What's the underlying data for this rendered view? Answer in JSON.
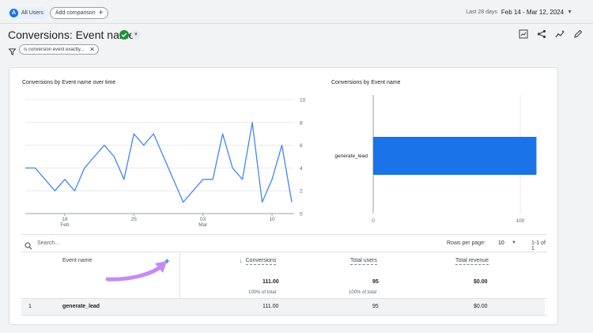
{
  "header": {
    "segment_avatar": "A",
    "segment_label": "All Users",
    "add_comparison": "Add comparison",
    "date_label": "Last 28 days",
    "date_range": "Feb 14 - Mar 12, 2024"
  },
  "report": {
    "title": "Conversions: Event name",
    "filter_text": "is conversion event exactly..."
  },
  "icons": [
    "segment-avatar-icon",
    "plus-icon",
    "check-circle-icon",
    "chevron-down-icon",
    "filter-icon",
    "close-icon",
    "customize-report-icon",
    "share-icon",
    "insights-icon",
    "edit-icon",
    "search-icon",
    "add-dimension-icon",
    "sort-arrow-icon"
  ],
  "colors": {
    "accent": "#1a73e8",
    "line": "#4285f4",
    "bar": "#1a73e8",
    "success": "#1e8e3e",
    "annotation_arrow": "#c58af9"
  },
  "line_chart": {
    "title": "Conversions by Event name over time",
    "x_ticks": [
      {
        "day": "18",
        "month": "Feb"
      },
      {
        "day": "25",
        "month": ""
      },
      {
        "day": "03",
        "month": "Mar"
      },
      {
        "day": "10",
        "month": ""
      }
    ],
    "y_ticks": [
      "10",
      "8",
      "6",
      "4",
      "2",
      "0"
    ]
  },
  "bar_chart": {
    "title": "Conversions by Event name",
    "category_label": "generate_lead",
    "x_ticks": [
      "0",
      "100"
    ]
  },
  "chart_data": [
    {
      "type": "line",
      "title": "Conversions by Event name over time",
      "x": [
        "Feb 14",
        "Feb 15",
        "Feb 16",
        "Feb 17",
        "Feb 18",
        "Feb 19",
        "Feb 20",
        "Feb 21",
        "Feb 22",
        "Feb 23",
        "Feb 24",
        "Feb 25",
        "Feb 26",
        "Feb 27",
        "Feb 28",
        "Feb 29",
        "Mar 01",
        "Mar 02",
        "Mar 03",
        "Mar 04",
        "Mar 05",
        "Mar 06",
        "Mar 07",
        "Mar 08",
        "Mar 09",
        "Mar 10",
        "Mar 11",
        "Mar 12"
      ],
      "series": [
        {
          "name": "generate_lead",
          "values": [
            4,
            4,
            3,
            2,
            3,
            2,
            4,
            5,
            6,
            5,
            3,
            7,
            6,
            7,
            5,
            3,
            1,
            2,
            3,
            3,
            7,
            4,
            3,
            8,
            1,
            3,
            6,
            1
          ]
        }
      ],
      "ylim": [
        0,
        10
      ],
      "grid": true
    },
    {
      "type": "bar",
      "title": "Conversions by Event name",
      "categories": [
        "generate_lead"
      ],
      "values": [
        111
      ],
      "xlim": [
        0,
        120
      ],
      "orientation": "horizontal"
    }
  ],
  "table": {
    "search_placeholder": "Search...",
    "rows_per_page_label": "Rows per page:",
    "rows_per_page_value": "10",
    "range_text": "1-1 of 1",
    "headers": {
      "event_name": "Event name",
      "conversions": "Conversions",
      "total_users": "Total users",
      "total_revenue": "Total revenue"
    },
    "totals": {
      "conversions": "111.00",
      "conversions_pct": "100% of total",
      "total_users": "95",
      "total_users_pct": "100% of total",
      "total_revenue": "$0.00"
    },
    "rows": [
      {
        "index": "1",
        "event_name": "generate_lead",
        "conversions": "111.00",
        "total_users": "95",
        "total_revenue": "$0.00"
      }
    ]
  }
}
